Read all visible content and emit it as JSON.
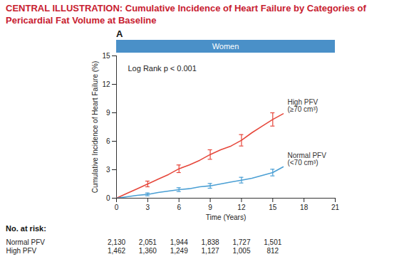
{
  "chart_data": {
    "type": "line",
    "title": "CENTRAL ILLUSTRATION: Cumulative Incidence of Heart Failure by Categories of Pericardial Fat Volume at Baseline",
    "panel": "A",
    "subtitle": "Women",
    "x_label": "Time (Years)",
    "y_label": "Cumulative Incidence of Heart Failure (%)",
    "annotations": [
      "Log Rank p < 0.001"
    ],
    "x": [
      0,
      1,
      2,
      3,
      4,
      5,
      6,
      7,
      8,
      9,
      10,
      11,
      12,
      13,
      14,
      15,
      16
    ],
    "series": [
      {
        "name": "High PFV (≥70 cm³)",
        "color": "#e6473b",
        "values": [
          0,
          0.5,
          1.0,
          1.5,
          2.0,
          2.5,
          3.1,
          3.5,
          4.0,
          4.6,
          5.1,
          5.5,
          6.1,
          6.9,
          7.6,
          8.3,
          8.9
        ],
        "error_bars": {
          "x": [
            3,
            6,
            9,
            12,
            15
          ],
          "lower": [
            1.2,
            2.7,
            4.1,
            5.5,
            7.6
          ],
          "upper": [
            1.8,
            3.5,
            5.1,
            6.7,
            9.0
          ]
        }
      },
      {
        "name": "Normal PFV (<70 cm³)",
        "color": "#4a9fd4",
        "values": [
          0,
          0.15,
          0.3,
          0.4,
          0.6,
          0.75,
          0.9,
          1.0,
          1.2,
          1.3,
          1.5,
          1.7,
          1.9,
          2.1,
          2.4,
          2.7,
          3.3
        ],
        "error_bars": {
          "x": [
            3,
            6,
            9,
            12,
            15
          ],
          "lower": [
            0.25,
            0.7,
            1.05,
            1.6,
            2.35
          ],
          "upper": [
            0.55,
            1.1,
            1.55,
            2.2,
            3.05
          ]
        }
      }
    ],
    "xlim": [
      0,
      21
    ],
    "xticks": [
      0,
      3,
      6,
      9,
      12,
      15,
      18,
      21
    ],
    "ylim": [
      0,
      15
    ],
    "yticks": [
      0,
      3,
      6,
      9,
      12,
      15
    ],
    "grid": false,
    "at_risk": {
      "title": "No. at risk:",
      "x": [
        0,
        3,
        6,
        9,
        12,
        15
      ],
      "rows": [
        {
          "name": "Normal PFV",
          "values": [
            2130,
            2051,
            1944,
            1838,
            1727,
            1501
          ]
        },
        {
          "name": "High PFV",
          "values": [
            1462,
            1360,
            1249,
            1127,
            1005,
            812
          ]
        }
      ]
    }
  }
}
